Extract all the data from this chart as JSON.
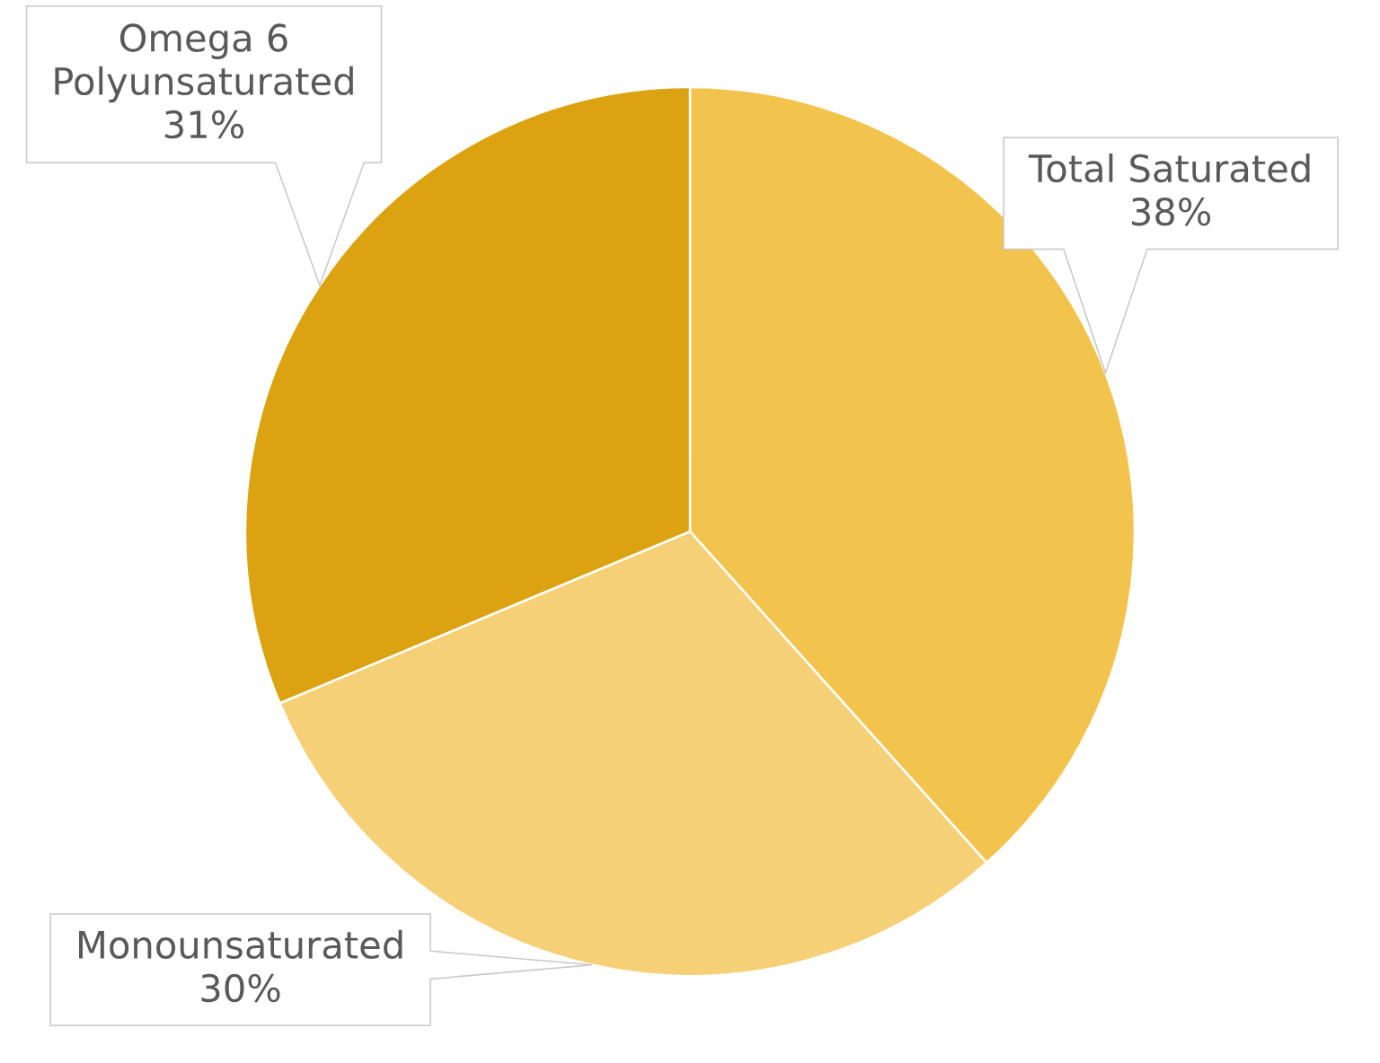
{
  "chart_data": {
    "type": "pie",
    "categories": [
      "Total Saturated",
      "Monounsaturated",
      "Omega 6\nPolyunsaturated"
    ],
    "values": [
      38,
      30,
      31
    ],
    "value_labels": [
      "38%",
      "30%",
      "31%"
    ],
    "colors": [
      "#f2c44e",
      "#f6d077",
      "#dba311"
    ]
  }
}
